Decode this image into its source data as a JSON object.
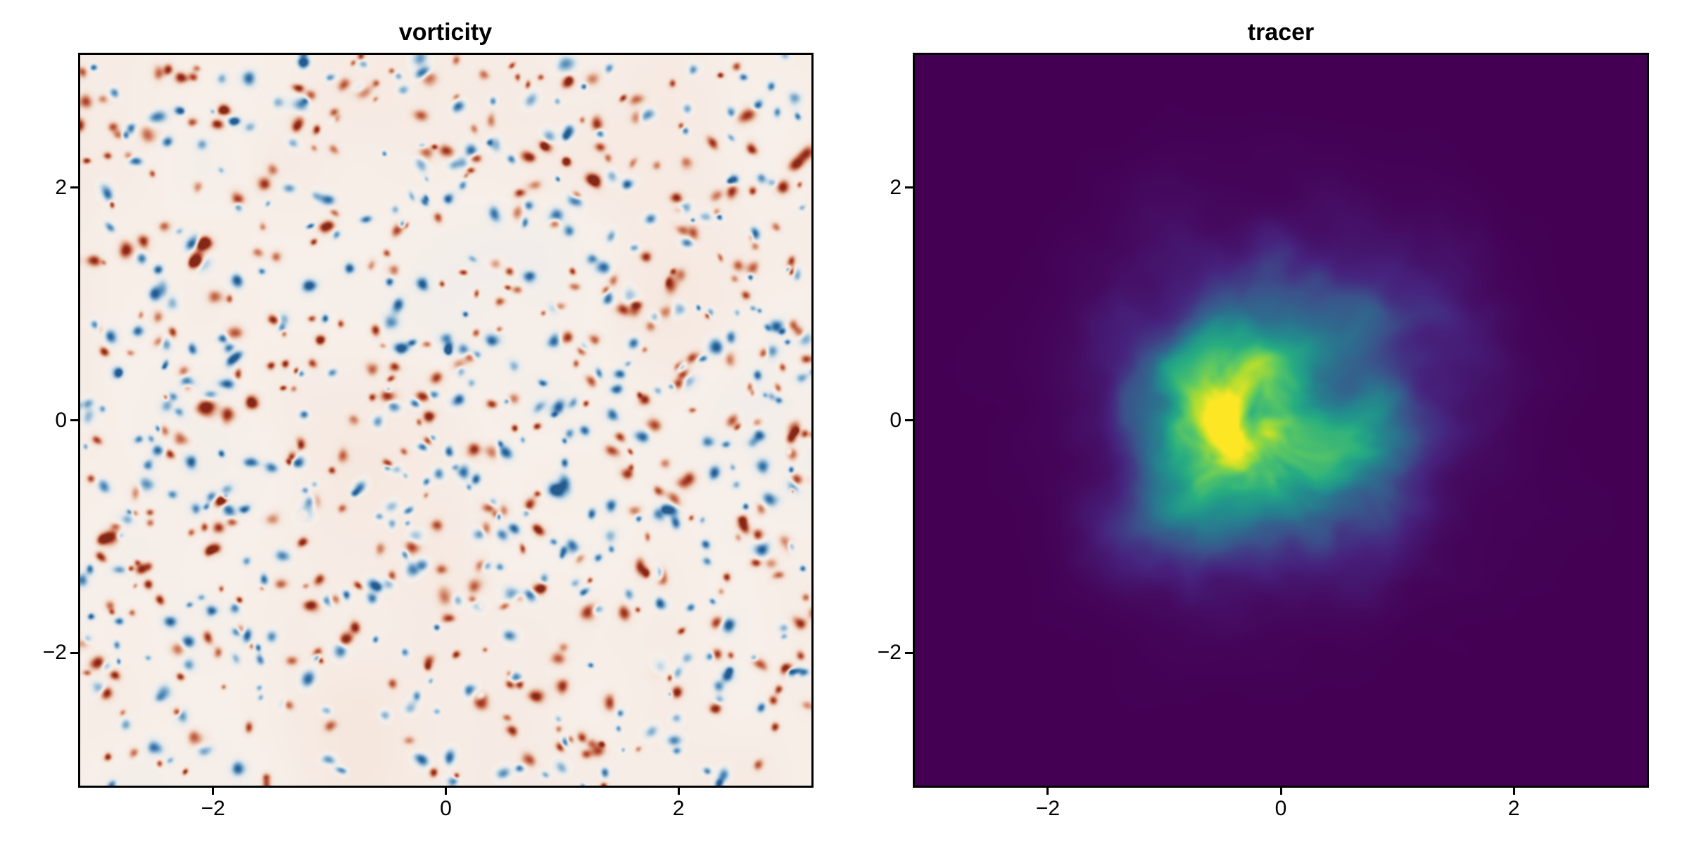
{
  "figure": {
    "background_color": "#ffffff",
    "axis_color": "#000000",
    "panels": [
      {
        "title": "vorticity",
        "x_tick_labels": [
          "−2",
          "0",
          "2"
        ],
        "y_tick_labels": [
          "2",
          "0",
          "−2"
        ]
      },
      {
        "title": "tracer",
        "x_tick_labels": [
          "−2",
          "0",
          "2"
        ],
        "y_tick_labels": [
          "2",
          "0",
          "−2"
        ]
      }
    ]
  },
  "chart_data": [
    {
      "type": "heatmap",
      "title": "vorticity",
      "x_range": [
        -3.14159,
        3.14159
      ],
      "y_range": [
        -3.14159,
        3.14159
      ],
      "x_ticks": [
        -2,
        0,
        2
      ],
      "y_ticks": [
        2,
        0,
        -2
      ],
      "grid_visible": false,
      "legend": "none",
      "colormap": {
        "name": "balance-style diverging (blue-white-red)",
        "stops_negative": [
          "#f7efe9",
          "#e2e8ec",
          "#b9cfdf",
          "#8db4d0",
          "#5e93bf",
          "#3a74aa",
          "#26598c"
        ],
        "stops_positive": [
          "#f7efe9",
          "#f3e0d5",
          "#e7bda7",
          "#d79478",
          "#c2664b",
          "#a43b28",
          "#832818"
        ]
      },
      "description": "Two-dimensional turbulence vorticity field: hundreds of small coherent vortices of alternating sign (red = positive, blue = negative) scattered quasi-uniformly over a square doubly-periodic domain, connected by thin swirling filaments on a near-white background.",
      "render_params": {
        "seed": 7,
        "grid": 520,
        "vortex_count": 880,
        "vortex_radius_px": [
          2.1,
          5.5
        ],
        "warp_amp": 7.5,
        "tint_amp": 0.17,
        "warm_bias": 0.02
      }
    },
    {
      "type": "heatmap",
      "title": "tracer",
      "x_range": [
        -3.14159,
        3.14159
      ],
      "y_range": [
        -3.14159,
        3.14159
      ],
      "x_ticks": [
        -2,
        0,
        2
      ],
      "y_ticks": [
        2,
        0,
        -2
      ],
      "grid_visible": false,
      "legend": "none",
      "colormap": {
        "name": "viridis",
        "stops": [
          "#440154",
          "#46237e",
          "#3b528b",
          "#2c718e",
          "#21918c",
          "#27ad81",
          "#5ec962",
          "#aadc32",
          "#fde725"
        ]
      },
      "description": "Passive tracer concentration: an initially Gaussian patch centered at the origin stirred by the turbulence into filamentary swirls; bright yellow-green core fading through teal and blue wisps into a uniform dark-purple zero-concentration background.",
      "render_params": {
        "seed": 11,
        "grid": 420,
        "blob_radius": 0.95,
        "warp_amp": 0.58,
        "mod_base": 0.35,
        "mod_amp": 1.05,
        "gain": 1.3
      }
    }
  ]
}
